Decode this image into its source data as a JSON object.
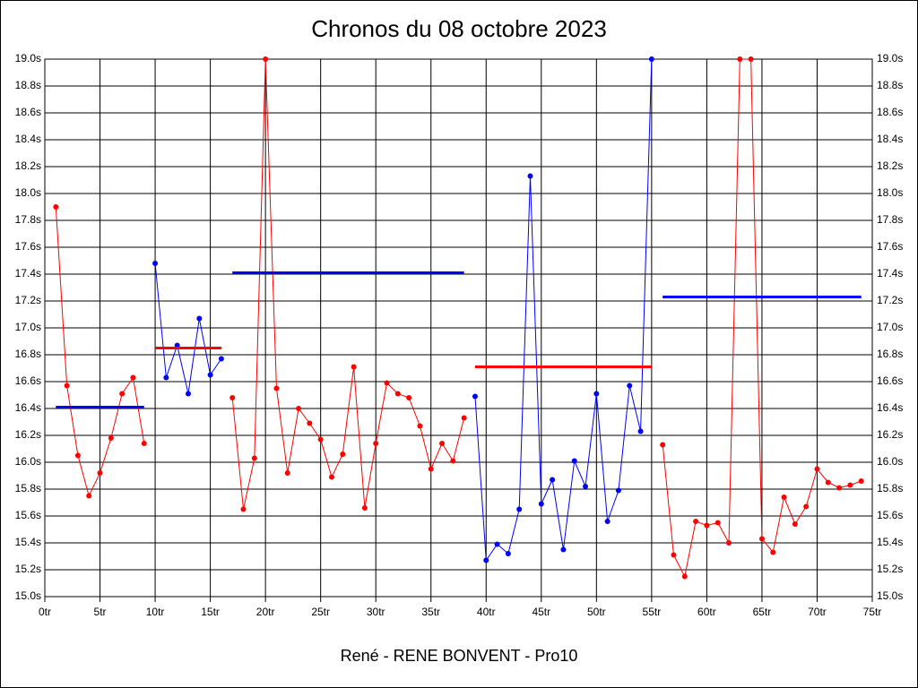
{
  "chart_data": {
    "type": "line",
    "title": "Chronos du 08 octobre 2023",
    "x_label": "René - RENE BONVENT - Pro10",
    "x": [
      1,
      2,
      3,
      4,
      5,
      6,
      7,
      8,
      9,
      10,
      11,
      12,
      13,
      14,
      15,
      16,
      17,
      18,
      19,
      20,
      21,
      22,
      23,
      24,
      25,
      26,
      27,
      28,
      29,
      30,
      31,
      32,
      33,
      34,
      35,
      36,
      37,
      38,
      39,
      40,
      41,
      42,
      43,
      44,
      45,
      46,
      47,
      48,
      49,
      50,
      51,
      52,
      53,
      54,
      55,
      56,
      57,
      58,
      59,
      60,
      61,
      62,
      63,
      64,
      65,
      66,
      67,
      68,
      69,
      70,
      71,
      72,
      73,
      74
    ],
    "series": [
      {
        "color": "#ff0000",
        "values": [
          17.9,
          16.57,
          16.05,
          15.75,
          15.92,
          16.18,
          16.51,
          16.63,
          16.14,
          null,
          null,
          null,
          null,
          null,
          null,
          null,
          16.48,
          15.65,
          16.03,
          19.0,
          16.55,
          15.92,
          16.4,
          16.29,
          16.17,
          15.89,
          16.06,
          16.71,
          15.66,
          16.14,
          16.59,
          16.51,
          16.48,
          16.27,
          15.95,
          16.14,
          16.01,
          16.33,
          null,
          null,
          null,
          null,
          null,
          null,
          null,
          null,
          null,
          null,
          null,
          null,
          null,
          null,
          null,
          null,
          null,
          16.13,
          15.31,
          15.15,
          15.56,
          15.53,
          15.55,
          15.4,
          19.0,
          19.0,
          15.43,
          15.33,
          15.74,
          15.54,
          15.67,
          15.95,
          15.85,
          15.81,
          15.83,
          15.86
        ]
      },
      {
        "color": "#0000ff",
        "values": [
          null,
          null,
          null,
          null,
          null,
          null,
          null,
          null,
          null,
          17.48,
          16.63,
          16.87,
          16.51,
          17.07,
          16.65,
          16.77,
          null,
          null,
          null,
          null,
          null,
          null,
          null,
          null,
          null,
          null,
          null,
          null,
          null,
          null,
          null,
          null,
          null,
          null,
          null,
          null,
          null,
          null,
          16.49,
          15.27,
          15.39,
          15.32,
          15.65,
          18.13,
          15.69,
          15.87,
          15.35,
          16.01,
          15.82,
          16.51,
          15.56,
          15.79,
          16.57,
          16.23,
          19.0,
          null,
          null,
          null,
          null,
          null,
          null,
          null,
          null,
          null,
          null,
          null,
          null,
          null,
          null,
          null,
          null,
          null,
          null,
          null
        ]
      }
    ],
    "averages": [
      {
        "color": "#0000ff",
        "x": [
          1,
          9
        ],
        "value": 16.41
      },
      {
        "color": "#ff0000",
        "x": [
          10,
          16
        ],
        "value": 16.85
      },
      {
        "color": "#0000ff",
        "x": [
          17,
          38
        ],
        "value": 17.41
      },
      {
        "color": "#ff0000",
        "x": [
          39,
          55
        ],
        "value": 16.71
      },
      {
        "color": "#0000ff",
        "x": [
          56,
          74
        ],
        "value": 17.23
      }
    ],
    "xlim": [
      0,
      75
    ],
    "xticks": [
      {
        "value": 0,
        "label": "0tr"
      },
      {
        "value": 5,
        "label": "5tr"
      },
      {
        "value": 10,
        "label": "10tr"
      },
      {
        "value": 15,
        "label": "15tr"
      },
      {
        "value": 20,
        "label": "20tr"
      },
      {
        "value": 25,
        "label": "25tr"
      },
      {
        "value": 30,
        "label": "30tr"
      },
      {
        "value": 35,
        "label": "35tr"
      },
      {
        "value": 40,
        "label": "40tr"
      },
      {
        "value": 45,
        "label": "45tr"
      },
      {
        "value": 50,
        "label": "50tr"
      },
      {
        "value": 55,
        "label": "55tr"
      },
      {
        "value": 60,
        "label": "60tr"
      },
      {
        "value": 65,
        "label": "65tr"
      },
      {
        "value": 70,
        "label": "70tr"
      },
      {
        "value": 75,
        "label": "75tr"
      }
    ],
    "ylim": [
      15.0,
      19.0
    ],
    "yticks": [
      {
        "value": 15.0,
        "label": "15.0s"
      },
      {
        "value": 15.2,
        "label": "15.2s"
      },
      {
        "value": 15.4,
        "label": "15.4s"
      },
      {
        "value": 15.6,
        "label": "15.6s"
      },
      {
        "value": 15.8,
        "label": "15.8s"
      },
      {
        "value": 16.0,
        "label": "16.0s"
      },
      {
        "value": 16.2,
        "label": "16.2s"
      },
      {
        "value": 16.4,
        "label": "16.4s"
      },
      {
        "value": 16.6,
        "label": "16.6s"
      },
      {
        "value": 16.8,
        "label": "16.8s"
      },
      {
        "value": 17.0,
        "label": "17.0s"
      },
      {
        "value": 17.2,
        "label": "17.2s"
      },
      {
        "value": 17.4,
        "label": "17.4s"
      },
      {
        "value": 17.6,
        "label": "17.6s"
      },
      {
        "value": 17.8,
        "label": "17.8s"
      },
      {
        "value": 18.0,
        "label": "18.0s"
      },
      {
        "value": 18.2,
        "label": "18.2s"
      },
      {
        "value": 18.4,
        "label": "18.4s"
      },
      {
        "value": 18.6,
        "label": "18.6s"
      },
      {
        "value": 18.8,
        "label": "18.8s"
      },
      {
        "value": 19.0,
        "label": "19.0s"
      }
    ],
    "grid": true
  }
}
